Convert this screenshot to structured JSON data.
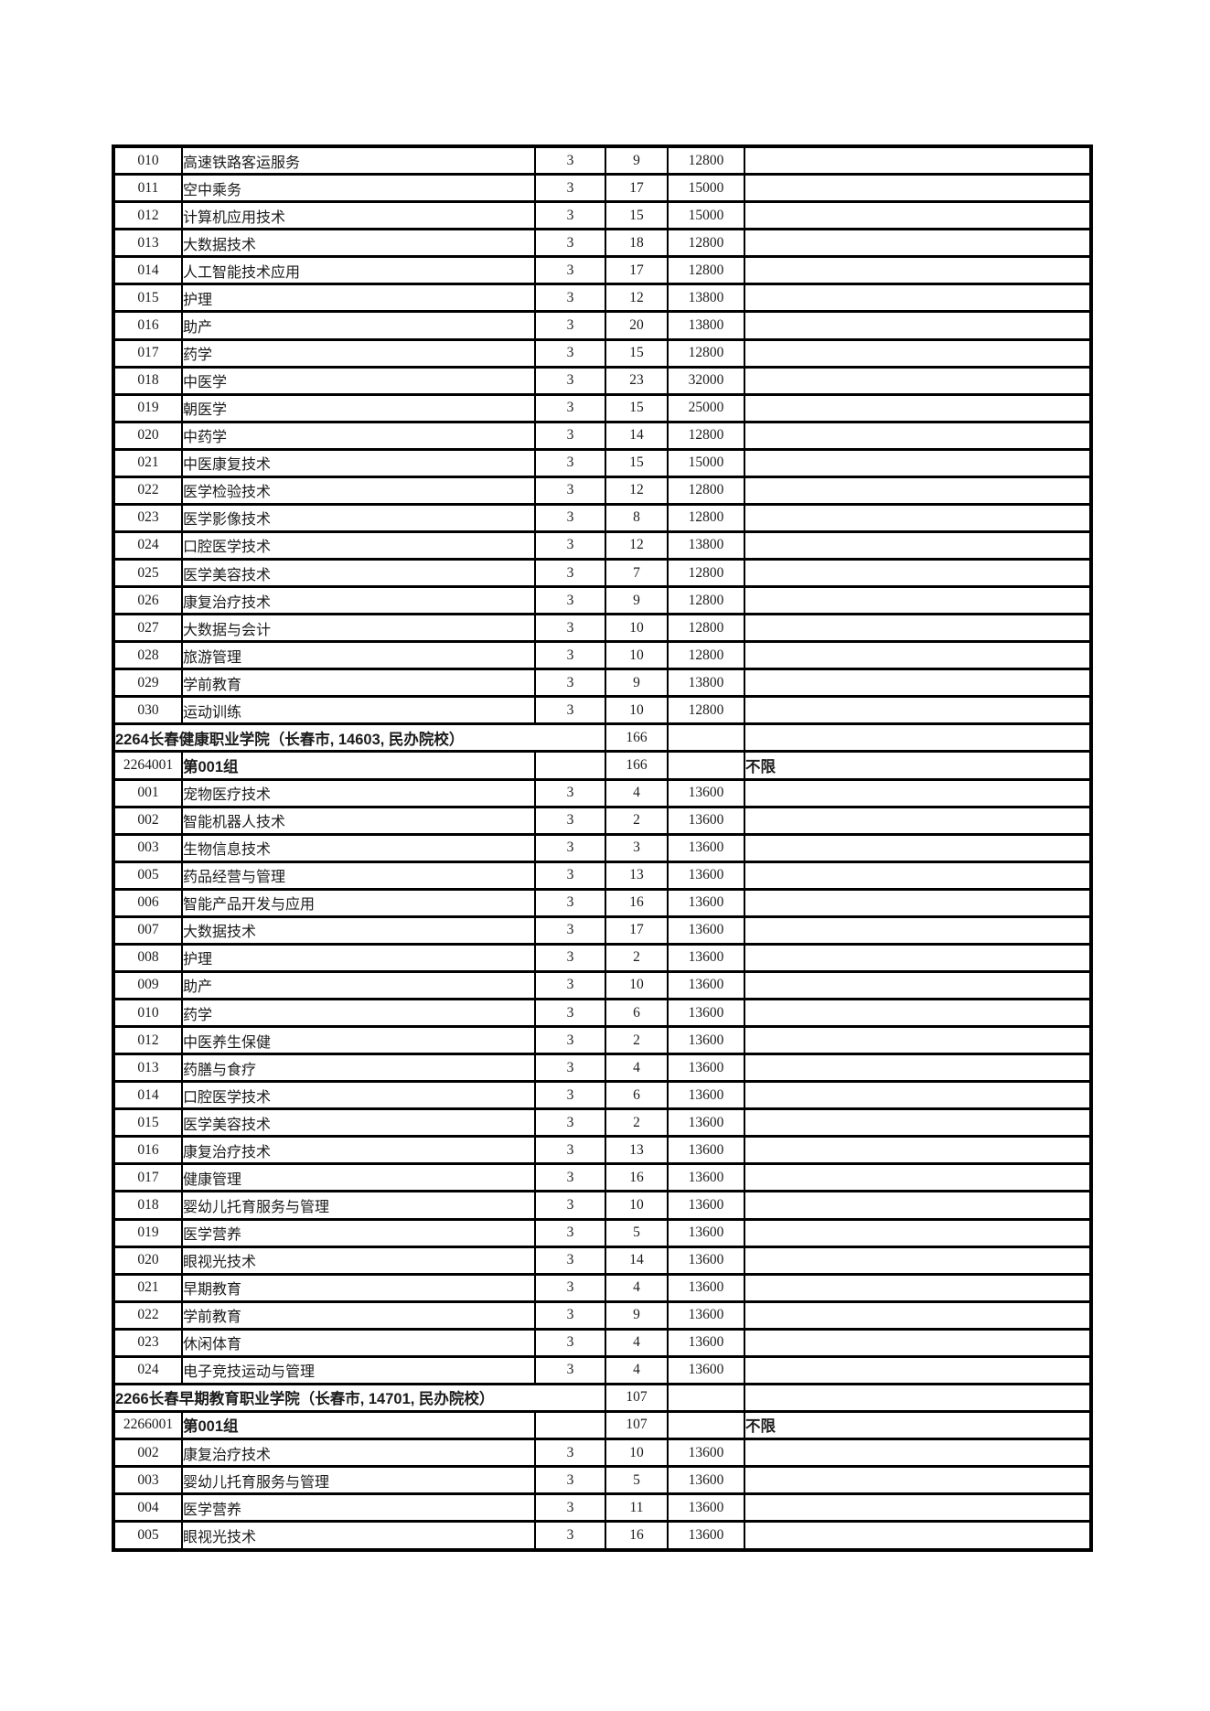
{
  "page": {
    "background": "#ffffff",
    "border_color": "#000000"
  },
  "table": {
    "sections": [
      {
        "rows": [
          {
            "code": "010",
            "major": "高速铁路客运服务",
            "years": "3",
            "plan": "9",
            "fee": "12800",
            "remark": ""
          },
          {
            "code": "011",
            "major": "空中乘务",
            "years": "3",
            "plan": "17",
            "fee": "15000",
            "remark": ""
          },
          {
            "code": "012",
            "major": "计算机应用技术",
            "years": "3",
            "plan": "15",
            "fee": "15000",
            "remark": ""
          },
          {
            "code": "013",
            "major": "大数据技术",
            "years": "3",
            "plan": "18",
            "fee": "12800",
            "remark": ""
          },
          {
            "code": "014",
            "major": "人工智能技术应用",
            "years": "3",
            "plan": "17",
            "fee": "12800",
            "remark": ""
          },
          {
            "code": "015",
            "major": "护理",
            "years": "3",
            "plan": "12",
            "fee": "13800",
            "remark": ""
          },
          {
            "code": "016",
            "major": "助产",
            "years": "3",
            "plan": "20",
            "fee": "13800",
            "remark": ""
          },
          {
            "code": "017",
            "major": "药学",
            "years": "3",
            "plan": "15",
            "fee": "12800",
            "remark": ""
          },
          {
            "code": "018",
            "major": "中医学",
            "years": "3",
            "plan": "23",
            "fee": "32000",
            "remark": ""
          },
          {
            "code": "019",
            "major": "朝医学",
            "years": "3",
            "plan": "15",
            "fee": "25000",
            "remark": ""
          },
          {
            "code": "020",
            "major": "中药学",
            "years": "3",
            "plan": "14",
            "fee": "12800",
            "remark": ""
          },
          {
            "code": "021",
            "major": "中医康复技术",
            "years": "3",
            "plan": "15",
            "fee": "15000",
            "remark": ""
          },
          {
            "code": "022",
            "major": "医学检验技术",
            "years": "3",
            "plan": "12",
            "fee": "12800",
            "remark": ""
          },
          {
            "code": "023",
            "major": "医学影像技术",
            "years": "3",
            "plan": "8",
            "fee": "12800",
            "remark": ""
          },
          {
            "code": "024",
            "major": "口腔医学技术",
            "years": "3",
            "plan": "12",
            "fee": "13800",
            "remark": ""
          },
          {
            "code": "025",
            "major": "医学美容技术",
            "years": "3",
            "plan": "7",
            "fee": "12800",
            "remark": ""
          },
          {
            "code": "026",
            "major": "康复治疗技术",
            "years": "3",
            "plan": "9",
            "fee": "12800",
            "remark": ""
          },
          {
            "code": "027",
            "major": "大数据与会计",
            "years": "3",
            "plan": "10",
            "fee": "12800",
            "remark": ""
          },
          {
            "code": "028",
            "major": "旅游管理",
            "years": "3",
            "plan": "10",
            "fee": "12800",
            "remark": ""
          },
          {
            "code": "029",
            "major": "学前教育",
            "years": "3",
            "plan": "9",
            "fee": "13800",
            "remark": ""
          },
          {
            "code": "030",
            "major": "运动训练",
            "years": "3",
            "plan": "10",
            "fee": "12800",
            "remark": ""
          }
        ]
      },
      {
        "school_header": {
          "title": "2264长春健康职业学院（长春市, 14603, 民办院校）",
          "plan": "166",
          "fee": "",
          "remark": ""
        },
        "group": {
          "code": "2264001",
          "name": "第001组",
          "years": "",
          "plan": "166",
          "fee": "",
          "remark": "不限"
        },
        "rows": [
          {
            "code": "001",
            "major": "宠物医疗技术",
            "years": "3",
            "plan": "4",
            "fee": "13600",
            "remark": ""
          },
          {
            "code": "002",
            "major": "智能机器人技术",
            "years": "3",
            "plan": "2",
            "fee": "13600",
            "remark": ""
          },
          {
            "code": "003",
            "major": "生物信息技术",
            "years": "3",
            "plan": "3",
            "fee": "13600",
            "remark": ""
          },
          {
            "code": "005",
            "major": "药品经营与管理",
            "years": "3",
            "plan": "13",
            "fee": "13600",
            "remark": ""
          },
          {
            "code": "006",
            "major": "智能产品开发与应用",
            "years": "3",
            "plan": "16",
            "fee": "13600",
            "remark": ""
          },
          {
            "code": "007",
            "major": "大数据技术",
            "years": "3",
            "plan": "17",
            "fee": "13600",
            "remark": ""
          },
          {
            "code": "008",
            "major": "护理",
            "years": "3",
            "plan": "2",
            "fee": "13600",
            "remark": ""
          },
          {
            "code": "009",
            "major": "助产",
            "years": "3",
            "plan": "10",
            "fee": "13600",
            "remark": ""
          },
          {
            "code": "010",
            "major": "药学",
            "years": "3",
            "plan": "6",
            "fee": "13600",
            "remark": ""
          },
          {
            "code": "012",
            "major": "中医养生保健",
            "years": "3",
            "plan": "2",
            "fee": "13600",
            "remark": ""
          },
          {
            "code": "013",
            "major": "药膳与食疗",
            "years": "3",
            "plan": "4",
            "fee": "13600",
            "remark": ""
          },
          {
            "code": "014",
            "major": "口腔医学技术",
            "years": "3",
            "plan": "6",
            "fee": "13600",
            "remark": ""
          },
          {
            "code": "015",
            "major": "医学美容技术",
            "years": "3",
            "plan": "2",
            "fee": "13600",
            "remark": ""
          },
          {
            "code": "016",
            "major": "康复治疗技术",
            "years": "3",
            "plan": "13",
            "fee": "13600",
            "remark": ""
          },
          {
            "code": "017",
            "major": "健康管理",
            "years": "3",
            "plan": "16",
            "fee": "13600",
            "remark": ""
          },
          {
            "code": "018",
            "major": "婴幼儿托育服务与管理",
            "years": "3",
            "plan": "10",
            "fee": "13600",
            "remark": ""
          },
          {
            "code": "019",
            "major": "医学营养",
            "years": "3",
            "plan": "5",
            "fee": "13600",
            "remark": ""
          },
          {
            "code": "020",
            "major": "眼视光技术",
            "years": "3",
            "plan": "14",
            "fee": "13600",
            "remark": ""
          },
          {
            "code": "021",
            "major": "早期教育",
            "years": "3",
            "plan": "4",
            "fee": "13600",
            "remark": ""
          },
          {
            "code": "022",
            "major": "学前教育",
            "years": "3",
            "plan": "9",
            "fee": "13600",
            "remark": ""
          },
          {
            "code": "023",
            "major": "休闲体育",
            "years": "3",
            "plan": "4",
            "fee": "13600",
            "remark": ""
          },
          {
            "code": "024",
            "major": "电子竞技运动与管理",
            "years": "3",
            "plan": "4",
            "fee": "13600",
            "remark": ""
          }
        ]
      },
      {
        "school_header": {
          "title": "2266长春早期教育职业学院（长春市, 14701, 民办院校）",
          "plan": "107",
          "fee": "",
          "remark": ""
        },
        "group": {
          "code": "2266001",
          "name": "第001组",
          "years": "",
          "plan": "107",
          "fee": "",
          "remark": "不限"
        },
        "rows": [
          {
            "code": "002",
            "major": "康复治疗技术",
            "years": "3",
            "plan": "10",
            "fee": "13600",
            "remark": ""
          },
          {
            "code": "003",
            "major": "婴幼儿托育服务与管理",
            "years": "3",
            "plan": "5",
            "fee": "13600",
            "remark": ""
          },
          {
            "code": "004",
            "major": "医学营养",
            "years": "3",
            "plan": "11",
            "fee": "13600",
            "remark": ""
          },
          {
            "code": "005",
            "major": "眼视光技术",
            "years": "3",
            "plan": "16",
            "fee": "13600",
            "remark": ""
          }
        ]
      }
    ]
  }
}
